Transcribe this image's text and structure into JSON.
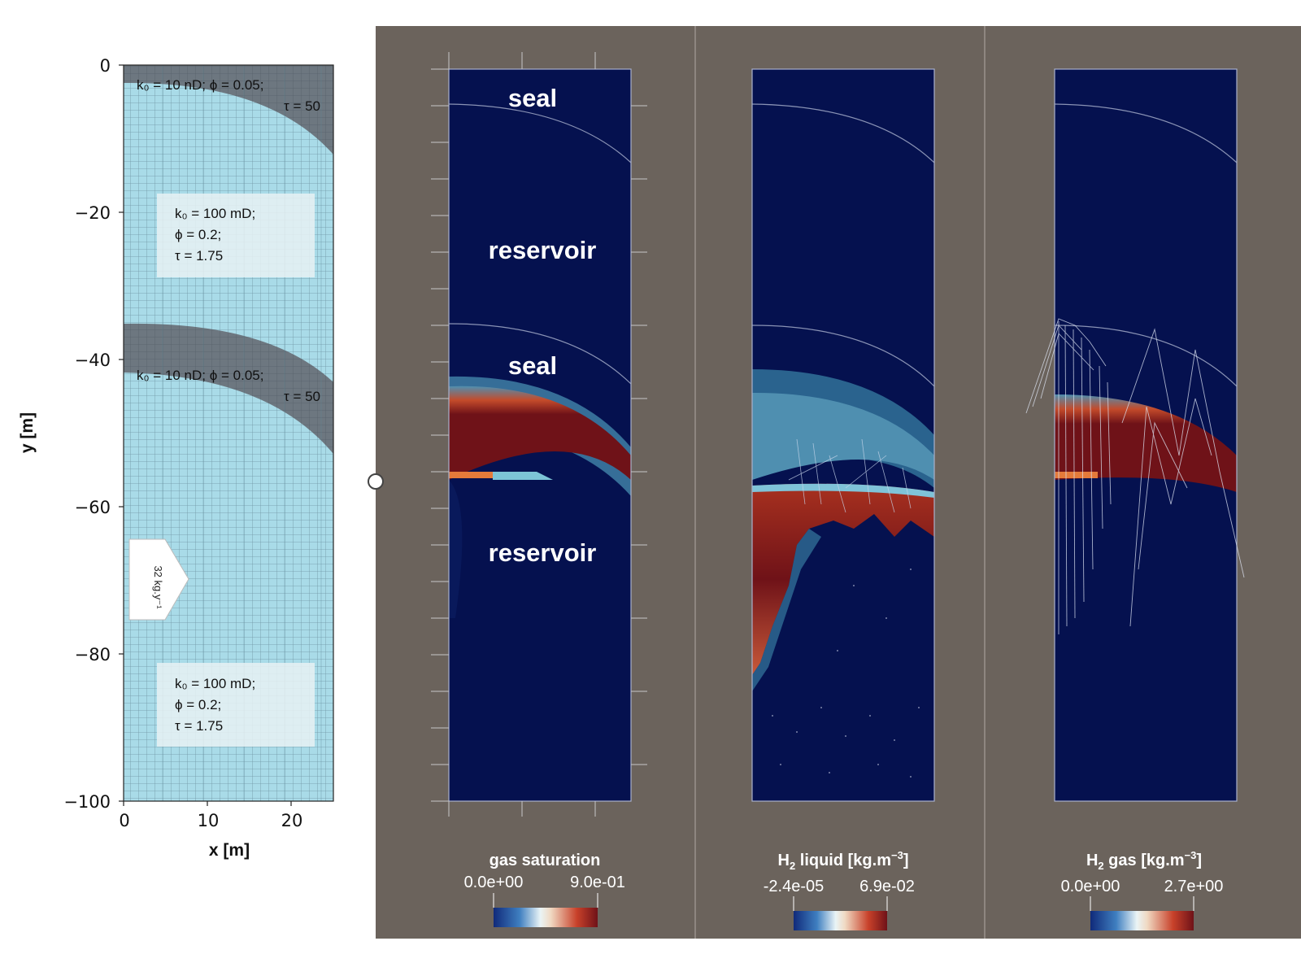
{
  "mesh_plot": {
    "xlabel": "x [m]",
    "ylabel": "y [m]",
    "yticks": [
      "0",
      "−20",
      "−40",
      "−60",
      "−80",
      "−100"
    ],
    "xticks": [
      "0",
      "10",
      "20"
    ],
    "ylim": [
      -100,
      0
    ],
    "xlim": [
      0,
      25
    ],
    "layers": [
      {
        "line1": "k₀ = 10 nD;  ϕ = 0.05;",
        "line2": "τ = 50"
      },
      {
        "line1": "k₀ = 100 mD;",
        "line2": "ϕ = 0.2;",
        "line3": "τ = 1.75"
      },
      {
        "line1": "k₀ = 10 nD;  ϕ = 0.05;",
        "line2": "τ = 50"
      },
      {
        "line1": "k₀ = 100 mD;",
        "line2": "ϕ = 0.2;",
        "line3": "τ = 1.75"
      }
    ],
    "injection_label": "32 kg.y⁻¹"
  },
  "panels": [
    {
      "labels": [
        "seal",
        "reservoir",
        "seal",
        "reservoir"
      ],
      "colorbar": {
        "title": "gas saturation",
        "min": "0.0e+00",
        "max": "9.0e-01"
      }
    },
    {
      "colorbar": {
        "title_main": "H",
        "title_sub": "2",
        "title_rest": " liquid [kg.m",
        "title_sup": "−3",
        "title_end": "]",
        "min": "-2.4e-05",
        "max": "6.9e-02"
      }
    },
    {
      "colorbar": {
        "title_main": "H",
        "title_sub": "2",
        "title_rest": " gas [kg.m",
        "title_sup": "−3",
        "title_end": "]",
        "min": "0.0e+00",
        "max": "2.7e+00"
      }
    }
  ],
  "colors": {
    "paraview_bg": "#6b635c",
    "field_navy": "#05114f",
    "plume_red": "#6f1218",
    "mesh_light": "#a9dbe8",
    "mesh_dark": "#6d7780"
  }
}
